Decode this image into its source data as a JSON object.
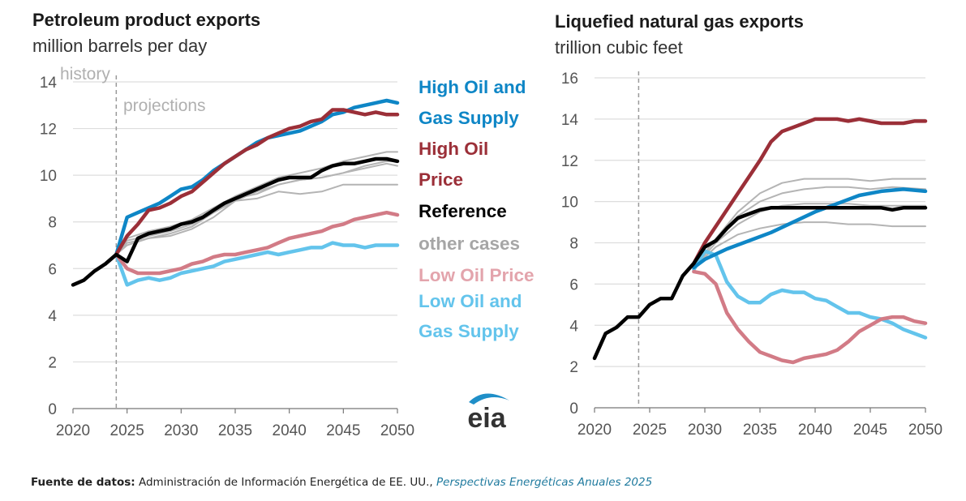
{
  "colors": {
    "high_supply": "#0e86c6",
    "high_price": "#9b2f38",
    "reference": "#000000",
    "other": "#b4b4b4",
    "low_price": "#d27b86",
    "low_supply": "#63c4ec",
    "grid": "#dddddd",
    "axis": "#555555",
    "history_line": "#999999"
  },
  "legend": {
    "high_supply_1": "High Oil and",
    "high_supply_2": "Gas Supply",
    "high_price_1": "High Oil",
    "high_price_2": "Price",
    "reference": "Reference",
    "other": "other cases",
    "low_price": "Low Oil Price",
    "low_supply_1": "Low Oil and",
    "low_supply_2": "Gas Supply"
  },
  "logo": {
    "text": "eia",
    "icon": "eia-logo-arc"
  },
  "source": {
    "label": "Fuente de datos:",
    "text": " Administración de Información Energética de EE. UU., ",
    "publication": "Perspectivas Energéticas Anuales 2025"
  },
  "chart_data": [
    {
      "type": "line",
      "title": "Petroleum product exports",
      "subtitle": "million barrels per day",
      "history_label": "history",
      "projections_label": "projections",
      "history_end": 2024,
      "xlim": [
        2020,
        2050
      ],
      "ylim": [
        0,
        14
      ],
      "xticks": [
        2020,
        2025,
        2030,
        2035,
        2040,
        2045,
        2050
      ],
      "yticks": [
        0,
        2,
        4,
        6,
        8,
        10,
        12,
        14
      ],
      "grid": true,
      "other_cases": [
        {
          "x": [
            2024,
            2025,
            2027,
            2029,
            2031,
            2033,
            2035,
            2037,
            2039,
            2041,
            2043,
            2045,
            2047,
            2049,
            2050
          ],
          "y": [
            6.6,
            7.1,
            7.3,
            7.4,
            7.7,
            8.2,
            8.9,
            9.3,
            9.6,
            9.8,
            9.9,
            10.1,
            10.4,
            10.6,
            10.6
          ]
        },
        {
          "x": [
            2024,
            2025,
            2027,
            2029,
            2031,
            2033,
            2035,
            2037,
            2039,
            2041,
            2043,
            2045,
            2047,
            2049,
            2050
          ],
          "y": [
            6.6,
            7.3,
            7.6,
            7.8,
            8.1,
            8.6,
            9.1,
            9.5,
            9.9,
            10.1,
            10.3,
            10.6,
            10.8,
            11.0,
            11.0
          ]
        },
        {
          "x": [
            2024,
            2025,
            2027,
            2029,
            2031,
            2033,
            2035,
            2037,
            2039,
            2041,
            2043,
            2045,
            2047,
            2049,
            2050
          ],
          "y": [
            6.6,
            7.0,
            7.3,
            7.5,
            7.8,
            8.4,
            9.0,
            9.2,
            9.6,
            9.8,
            9.9,
            10.1,
            10.3,
            10.5,
            10.4
          ]
        },
        {
          "x": [
            2024,
            2025,
            2027,
            2029,
            2031,
            2033,
            2035,
            2037,
            2039,
            2041,
            2043,
            2045,
            2047,
            2049,
            2050
          ],
          "y": [
            6.6,
            7.2,
            7.4,
            7.6,
            7.9,
            8.4,
            8.9,
            9.0,
            9.3,
            9.2,
            9.3,
            9.6,
            9.6,
            9.6,
            9.6
          ]
        }
      ],
      "series": [
        {
          "name": "High Oil and Gas Supply",
          "key": "high_supply",
          "x": [
            2024,
            2025,
            2026,
            2027,
            2028,
            2029,
            2030,
            2031,
            2032,
            2033,
            2034,
            2035,
            2036,
            2037,
            2038,
            2039,
            2040,
            2041,
            2042,
            2043,
            2044,
            2045,
            2046,
            2047,
            2048,
            2049,
            2050
          ],
          "y": [
            6.6,
            8.2,
            8.4,
            8.6,
            8.8,
            9.1,
            9.4,
            9.5,
            9.8,
            10.2,
            10.5,
            10.8,
            11.1,
            11.4,
            11.6,
            11.7,
            11.8,
            11.9,
            12.1,
            12.3,
            12.6,
            12.7,
            12.9,
            13.0,
            13.1,
            13.2,
            13.1
          ]
        },
        {
          "name": "High Oil Price",
          "key": "high_price",
          "x": [
            2024,
            2025,
            2026,
            2027,
            2028,
            2029,
            2030,
            2031,
            2032,
            2033,
            2034,
            2035,
            2036,
            2037,
            2038,
            2039,
            2040,
            2041,
            2042,
            2043,
            2044,
            2045,
            2046,
            2047,
            2048,
            2049,
            2050
          ],
          "y": [
            6.6,
            7.4,
            7.9,
            8.5,
            8.6,
            8.8,
            9.1,
            9.3,
            9.7,
            10.1,
            10.5,
            10.8,
            11.1,
            11.3,
            11.6,
            11.8,
            12.0,
            12.1,
            12.3,
            12.4,
            12.8,
            12.8,
            12.7,
            12.6,
            12.7,
            12.6,
            12.6
          ]
        },
        {
          "name": "Reference",
          "key": "reference",
          "x": [
            2020,
            2021,
            2022,
            2023,
            2024,
            2025,
            2026,
            2027,
            2028,
            2029,
            2030,
            2031,
            2032,
            2033,
            2034,
            2035,
            2036,
            2037,
            2038,
            2039,
            2040,
            2041,
            2042,
            2043,
            2044,
            2045,
            2046,
            2047,
            2048,
            2049,
            2050
          ],
          "y": [
            5.3,
            5.5,
            5.9,
            6.2,
            6.6,
            6.3,
            7.3,
            7.5,
            7.6,
            7.7,
            7.9,
            8.0,
            8.2,
            8.5,
            8.8,
            9.0,
            9.2,
            9.4,
            9.6,
            9.8,
            9.9,
            9.9,
            9.9,
            10.2,
            10.4,
            10.5,
            10.5,
            10.6,
            10.7,
            10.7,
            10.6
          ]
        },
        {
          "name": "Low Oil Price",
          "key": "low_price",
          "x": [
            2024,
            2025,
            2026,
            2027,
            2028,
            2029,
            2030,
            2031,
            2032,
            2033,
            2034,
            2035,
            2036,
            2037,
            2038,
            2039,
            2040,
            2041,
            2042,
            2043,
            2044,
            2045,
            2046,
            2047,
            2048,
            2049,
            2050
          ],
          "y": [
            6.6,
            6.0,
            5.8,
            5.8,
            5.8,
            5.9,
            6.0,
            6.2,
            6.3,
            6.5,
            6.6,
            6.6,
            6.7,
            6.8,
            6.9,
            7.1,
            7.3,
            7.4,
            7.5,
            7.6,
            7.8,
            7.9,
            8.1,
            8.2,
            8.3,
            8.4,
            8.3
          ]
        },
        {
          "name": "Low Oil and Gas Supply",
          "key": "low_supply",
          "x": [
            2024,
            2025,
            2026,
            2027,
            2028,
            2029,
            2030,
            2031,
            2032,
            2033,
            2034,
            2035,
            2036,
            2037,
            2038,
            2039,
            2040,
            2041,
            2042,
            2043,
            2044,
            2045,
            2046,
            2047,
            2048,
            2049,
            2050
          ],
          "y": [
            6.6,
            5.3,
            5.5,
            5.6,
            5.5,
            5.6,
            5.8,
            5.9,
            6.0,
            6.1,
            6.3,
            6.4,
            6.5,
            6.6,
            6.7,
            6.6,
            6.7,
            6.8,
            6.9,
            6.9,
            7.1,
            7.0,
            7.0,
            6.9,
            7.0,
            7.0,
            7.0
          ]
        }
      ]
    },
    {
      "type": "line",
      "title": "Liquefied natural gas exports",
      "subtitle": "trillion cubic feet",
      "history_end": 2024,
      "xlim": [
        2020,
        2050
      ],
      "ylim": [
        0,
        16
      ],
      "xticks": [
        2020,
        2025,
        2030,
        2035,
        2040,
        2045,
        2050
      ],
      "yticks": [
        0,
        2,
        4,
        6,
        8,
        10,
        12,
        14,
        16
      ],
      "grid": true,
      "other_cases": [
        {
          "x": [
            2029,
            2031,
            2033,
            2035,
            2037,
            2039,
            2041,
            2043,
            2045,
            2047,
            2050
          ],
          "y": [
            6.8,
            8.2,
            9.5,
            10.4,
            10.9,
            11.1,
            11.1,
            11.1,
            11.0,
            11.1,
            11.1
          ]
        },
        {
          "x": [
            2029,
            2031,
            2033,
            2035,
            2037,
            2039,
            2041,
            2043,
            2045,
            2047,
            2050
          ],
          "y": [
            6.8,
            8.2,
            9.3,
            10.0,
            10.4,
            10.6,
            10.7,
            10.7,
            10.6,
            10.7,
            10.6
          ]
        },
        {
          "x": [
            2029,
            2031,
            2033,
            2035,
            2037,
            2039,
            2041,
            2043,
            2045,
            2047,
            2050
          ],
          "y": [
            6.8,
            8.0,
            8.9,
            9.5,
            9.8,
            9.9,
            9.9,
            9.9,
            9.8,
            9.8,
            9.8
          ]
        },
        {
          "x": [
            2029,
            2031,
            2033,
            2035,
            2037,
            2039,
            2041,
            2043,
            2045,
            2047,
            2050
          ],
          "y": [
            6.8,
            7.8,
            8.4,
            8.7,
            8.9,
            9.0,
            9.0,
            8.9,
            8.9,
            8.8,
            8.8
          ]
        }
      ],
      "series": [
        {
          "name": "High Oil and Gas Supply",
          "key": "high_supply",
          "x": [
            2029,
            2030,
            2032,
            2034,
            2036,
            2038,
            2040,
            2042,
            2044,
            2046,
            2048,
            2050
          ],
          "y": [
            6.8,
            7.2,
            7.7,
            8.1,
            8.5,
            9.0,
            9.5,
            9.9,
            10.3,
            10.5,
            10.6,
            10.5
          ]
        },
        {
          "name": "High Oil Price",
          "key": "high_price",
          "x": [
            2029,
            2030,
            2031,
            2032,
            2033,
            2034,
            2035,
            2036,
            2037,
            2038,
            2039,
            2040,
            2041,
            2042,
            2043,
            2044,
            2045,
            2046,
            2047,
            2048,
            2049,
            2050
          ],
          "y": [
            7.0,
            8.0,
            8.8,
            9.6,
            10.4,
            11.2,
            12.0,
            12.9,
            13.4,
            13.6,
            13.8,
            14.0,
            14.0,
            14.0,
            13.9,
            14.0,
            13.9,
            13.8,
            13.8,
            13.8,
            13.9,
            13.9
          ]
        },
        {
          "name": "Reference",
          "key": "reference",
          "x": [
            2020,
            2021,
            2022,
            2023,
            2024,
            2025,
            2026,
            2027,
            2028,
            2029,
            2030,
            2031,
            2032,
            2033,
            2034,
            2035,
            2036,
            2037,
            2038,
            2039,
            2040,
            2041,
            2042,
            2043,
            2044,
            2045,
            2046,
            2047,
            2048,
            2049,
            2050
          ],
          "y": [
            2.4,
            3.6,
            3.9,
            4.4,
            4.4,
            5.0,
            5.3,
            5.3,
            6.4,
            7.0,
            7.8,
            8.1,
            8.7,
            9.2,
            9.4,
            9.6,
            9.7,
            9.7,
            9.7,
            9.7,
            9.7,
            9.7,
            9.7,
            9.7,
            9.7,
            9.7,
            9.7,
            9.6,
            9.7,
            9.7,
            9.7
          ]
        },
        {
          "name": "Low Oil Price",
          "key": "low_price",
          "x": [
            2029,
            2030,
            2031,
            2032,
            2033,
            2034,
            2035,
            2036,
            2037,
            2038,
            2039,
            2040,
            2041,
            2042,
            2043,
            2044,
            2045,
            2046,
            2047,
            2048,
            2049,
            2050
          ],
          "y": [
            6.6,
            6.5,
            6.0,
            4.6,
            3.8,
            3.2,
            2.7,
            2.5,
            2.3,
            2.2,
            2.4,
            2.5,
            2.6,
            2.8,
            3.2,
            3.7,
            4.0,
            4.3,
            4.4,
            4.4,
            4.2,
            4.1
          ]
        },
        {
          "name": "Low Oil and Gas Supply",
          "key": "low_supply",
          "x": [
            2029,
            2030,
            2031,
            2032,
            2033,
            2034,
            2035,
            2036,
            2037,
            2038,
            2039,
            2040,
            2041,
            2042,
            2043,
            2044,
            2045,
            2046,
            2047,
            2048,
            2049,
            2050
          ],
          "y": [
            6.7,
            7.6,
            7.4,
            6.1,
            5.4,
            5.1,
            5.1,
            5.5,
            5.7,
            5.6,
            5.6,
            5.3,
            5.2,
            4.9,
            4.6,
            4.6,
            4.4,
            4.3,
            4.1,
            3.8,
            3.6,
            3.4
          ]
        }
      ]
    }
  ]
}
